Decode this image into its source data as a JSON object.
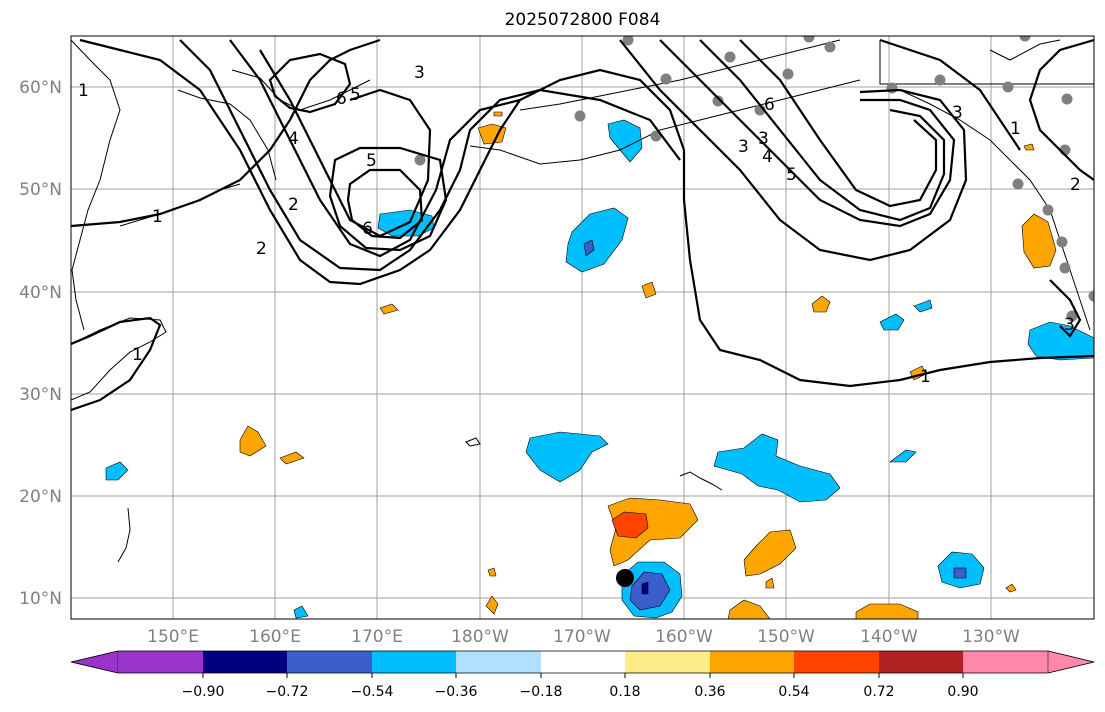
{
  "title": "2025072800 F084",
  "latitude_labels": [
    "60°N",
    "50°N",
    "40°N",
    "30°N",
    "20°N",
    "10°N"
  ],
  "longitude_labels": [
    "150°E",
    "160°E",
    "170°E",
    "180°W",
    "170°W",
    "160°W",
    "150°W",
    "140°W",
    "130°W"
  ],
  "colorbar": {
    "ticks": [
      "−0.90",
      "−0.72",
      "−0.54",
      "−0.36",
      "−0.18",
      "0.18",
      "0.36",
      "0.54",
      "0.72",
      "0.90"
    ],
    "colors": [
      "#9933cc",
      "#000080",
      "#3a5fcd",
      "#00bfff",
      "#b0e0ff",
      "#ffffff",
      "#ffec8b",
      "#ffa500",
      "#ff4500",
      "#b22222",
      "#ff88aa"
    ]
  },
  "contour_labels": [
    "1",
    "2",
    "3",
    "4",
    "5",
    "6",
    "5",
    "6",
    "3",
    "1",
    "2",
    "3",
    "4",
    "5",
    "6",
    "1",
    "2",
    "3",
    "1",
    "3",
    "1"
  ]
}
